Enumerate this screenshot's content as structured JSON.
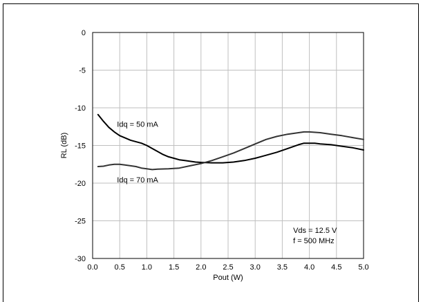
{
  "chart_data": {
    "type": "line",
    "title": "",
    "xlabel": "Pout (W)",
    "ylabel": "RL (dB)",
    "xlim": [
      0.0,
      5.0
    ],
    "ylim": [
      -30,
      0
    ],
    "xticks": [
      "0.0",
      "0.5",
      "1.0",
      "1.5",
      "2.0",
      "2.5",
      "3.0",
      "3.5",
      "4.0",
      "4.5",
      "5.0"
    ],
    "yticks": [
      "0",
      "-5",
      "-10",
      "-15",
      "-20",
      "-25",
      "-30"
    ],
    "xtick_values": [
      0.0,
      0.5,
      1.0,
      1.5,
      2.0,
      2.5,
      3.0,
      3.5,
      4.0,
      4.5,
      5.0
    ],
    "ytick_values": [
      0,
      -5,
      -10,
      -15,
      -20,
      -25,
      -30
    ],
    "grid": true,
    "series": [
      {
        "name": "Idq = 50 mA",
        "color": "#000000",
        "x": [
          0.1,
          0.2,
          0.3,
          0.4,
          0.5,
          0.6,
          0.7,
          0.8,
          0.9,
          1.0,
          1.1,
          1.2,
          1.3,
          1.4,
          1.5,
          1.6,
          1.7,
          1.8,
          1.9,
          2.0,
          2.2,
          2.4,
          2.6,
          2.8,
          3.0,
          3.2,
          3.4,
          3.6,
          3.8,
          3.9,
          4.0,
          4.1,
          4.2,
          4.4,
          4.6,
          4.8,
          5.0
        ],
        "y": [
          -10.9,
          -11.8,
          -12.6,
          -13.2,
          -13.7,
          -14.0,
          -14.3,
          -14.5,
          -14.7,
          -15.0,
          -15.4,
          -15.8,
          -16.2,
          -16.5,
          -16.7,
          -16.9,
          -17.0,
          -17.1,
          -17.2,
          -17.25,
          -17.3,
          -17.3,
          -17.2,
          -17.0,
          -16.7,
          -16.3,
          -15.9,
          -15.4,
          -14.9,
          -14.7,
          -14.7,
          -14.7,
          -14.8,
          -14.9,
          -15.1,
          -15.3,
          -15.6
        ]
      },
      {
        "name": "Idq = 70 mA",
        "color": "#333333",
        "x": [
          0.1,
          0.2,
          0.3,
          0.4,
          0.5,
          0.6,
          0.7,
          0.8,
          0.9,
          1.0,
          1.1,
          1.2,
          1.4,
          1.6,
          1.8,
          2.0,
          2.2,
          2.4,
          2.6,
          2.8,
          3.0,
          3.2,
          3.4,
          3.6,
          3.8,
          3.9,
          4.0,
          4.2,
          4.4,
          4.6,
          4.8,
          5.0
        ],
        "y": [
          -17.8,
          -17.75,
          -17.6,
          -17.5,
          -17.5,
          -17.6,
          -17.7,
          -17.8,
          -18.0,
          -18.1,
          -18.2,
          -18.15,
          -18.1,
          -18.0,
          -17.7,
          -17.4,
          -17.0,
          -16.5,
          -16.0,
          -15.4,
          -14.8,
          -14.2,
          -13.8,
          -13.5,
          -13.3,
          -13.2,
          -13.2,
          -13.3,
          -13.5,
          -13.7,
          -13.95,
          -14.2
        ]
      }
    ],
    "annotations": [
      {
        "text": "Idq = 50 mA",
        "x": 0.45,
        "y": -12.5
      },
      {
        "text": "Idq = 70 mA",
        "x": 0.45,
        "y": -19.9
      },
      {
        "text": "Vds = 12.5 V",
        "x": 3.7,
        "y": -26.6
      },
      {
        "text": "f = 500 MHz",
        "x": 3.7,
        "y": -28.0
      }
    ]
  }
}
